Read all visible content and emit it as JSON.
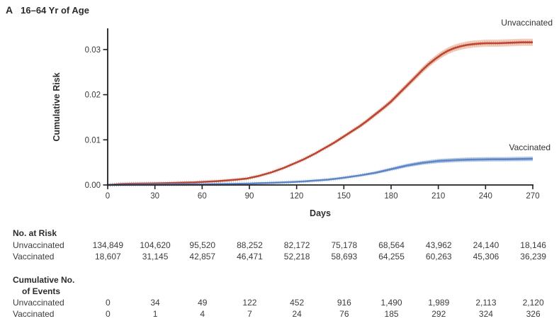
{
  "panel": {
    "letter": "A",
    "title": "16–64 Yr of Age"
  },
  "chart_data": {
    "type": "line",
    "xlabel": "Days",
    "ylabel": "Cumulative Risk",
    "xlim": [
      0,
      270
    ],
    "ylim": [
      0,
      0.035
    ],
    "grid": false,
    "legend_position": "labels-at-line-ends",
    "xticks": [
      0,
      30,
      60,
      90,
      120,
      150,
      180,
      210,
      240,
      270
    ],
    "yticks": [
      {
        "v": 0.0,
        "label": "0.00"
      },
      {
        "v": 0.01,
        "label": "0.01"
      },
      {
        "v": 0.02,
        "label": "0.02"
      },
      {
        "v": 0.03,
        "label": "0.03"
      }
    ],
    "axis_color": "#231f20",
    "tick_label_color": "#3a3a3a",
    "series": [
      {
        "name": "Unvaccinated",
        "line_color": "#bb4733",
        "band_color": "#f2cdbd",
        "band_fraction": 0.022,
        "band_min": 0.0001,
        "points": [
          [
            0,
            0
          ],
          [
            4,
            0.0001
          ],
          [
            8,
            0.0002
          ],
          [
            15,
            0.00028
          ],
          [
            25,
            0.00033
          ],
          [
            35,
            0.0004
          ],
          [
            45,
            0.00048
          ],
          [
            55,
            0.00058
          ],
          [
            62,
            0.0007
          ],
          [
            70,
            0.00085
          ],
          [
            76,
            0.001
          ],
          [
            82,
            0.0012
          ],
          [
            88,
            0.0014
          ],
          [
            92,
            0.0017
          ],
          [
            96,
            0.002
          ],
          [
            100,
            0.0024
          ],
          [
            104,
            0.0028
          ],
          [
            108,
            0.0033
          ],
          [
            112,
            0.0038
          ],
          [
            116,
            0.0044
          ],
          [
            120,
            0.005
          ],
          [
            124,
            0.0056
          ],
          [
            128,
            0.0063
          ],
          [
            132,
            0.007
          ],
          [
            136,
            0.0078
          ],
          [
            140,
            0.0086
          ],
          [
            144,
            0.0094
          ],
          [
            148,
            0.0103
          ],
          [
            152,
            0.0112
          ],
          [
            156,
            0.0121
          ],
          [
            160,
            0.013
          ],
          [
            164,
            0.014
          ],
          [
            168,
            0.0151
          ],
          [
            172,
            0.0162
          ],
          [
            176,
            0.0173
          ],
          [
            180,
            0.0185
          ],
          [
            184,
            0.0199
          ],
          [
            188,
            0.0213
          ],
          [
            192,
            0.0227
          ],
          [
            196,
            0.0241
          ],
          [
            200,
            0.0255
          ],
          [
            204,
            0.0268
          ],
          [
            208,
            0.0279
          ],
          [
            212,
            0.0289
          ],
          [
            216,
            0.0297
          ],
          [
            220,
            0.0303
          ],
          [
            224,
            0.0307
          ],
          [
            228,
            0.031
          ],
          [
            232,
            0.0312
          ],
          [
            236,
            0.0313
          ],
          [
            240,
            0.0314
          ],
          [
            248,
            0.0314
          ],
          [
            256,
            0.0315
          ],
          [
            263,
            0.0316
          ],
          [
            270,
            0.0316
          ]
        ]
      },
      {
        "name": "Vaccinated",
        "line_color": "#5f87c5",
        "band_color": "#bfd0ea",
        "band_fraction": 0.075,
        "band_min": 6e-05,
        "points": [
          [
            0,
            0
          ],
          [
            10,
            5e-05
          ],
          [
            20,
            8e-05
          ],
          [
            30,
            0.0001
          ],
          [
            45,
            0.00013
          ],
          [
            60,
            0.00016
          ],
          [
            70,
            0.0002
          ],
          [
            80,
            0.00025
          ],
          [
            90,
            0.00032
          ],
          [
            95,
            0.00037
          ],
          [
            100,
            0.00042
          ],
          [
            105,
            0.00048
          ],
          [
            110,
            0.00055
          ],
          [
            115,
            0.00062
          ],
          [
            120,
            0.0007
          ],
          [
            125,
            0.0008
          ],
          [
            130,
            0.00092
          ],
          [
            135,
            0.00105
          ],
          [
            140,
            0.0012
          ],
          [
            145,
            0.00138
          ],
          [
            150,
            0.0016
          ],
          [
            155,
            0.00185
          ],
          [
            160,
            0.0021
          ],
          [
            165,
            0.0024
          ],
          [
            170,
            0.0027
          ],
          [
            175,
            0.0031
          ],
          [
            180,
            0.0035
          ],
          [
            185,
            0.0039
          ],
          [
            190,
            0.0043
          ],
          [
            195,
            0.0046
          ],
          [
            200,
            0.0049
          ],
          [
            205,
            0.0051
          ],
          [
            210,
            0.0053
          ],
          [
            215,
            0.0054
          ],
          [
            220,
            0.0055
          ],
          [
            228,
            0.0056
          ],
          [
            236,
            0.00565
          ],
          [
            244,
            0.0057
          ],
          [
            252,
            0.0057
          ],
          [
            260,
            0.00575
          ],
          [
            270,
            0.0058
          ]
        ]
      }
    ]
  },
  "risk_table": {
    "title": "No. at Risk",
    "rows": [
      {
        "label": "Unvaccinated",
        "values": [
          "134,849",
          "104,620",
          "95,520",
          "88,252",
          "82,172",
          "75,178",
          "68,564",
          "43,962",
          "24,140",
          "18,146"
        ]
      },
      {
        "label": "Vaccinated",
        "values": [
          "18,607",
          "31,145",
          "42,857",
          "46,471",
          "52,218",
          "58,693",
          "64,255",
          "60,263",
          "45,306",
          "36,239"
        ]
      }
    ]
  },
  "events_table": {
    "title_line1": "Cumulative No.",
    "title_line2": "of Events",
    "rows": [
      {
        "label": "Unvaccinated",
        "values": [
          "0",
          "34",
          "49",
          "122",
          "452",
          "916",
          "1,490",
          "1,989",
          "2,113",
          "2,120"
        ]
      },
      {
        "label": "Vaccinated",
        "values": [
          "0",
          "1",
          "4",
          "7",
          "24",
          "76",
          "185",
          "292",
          "324",
          "326"
        ]
      }
    ]
  }
}
